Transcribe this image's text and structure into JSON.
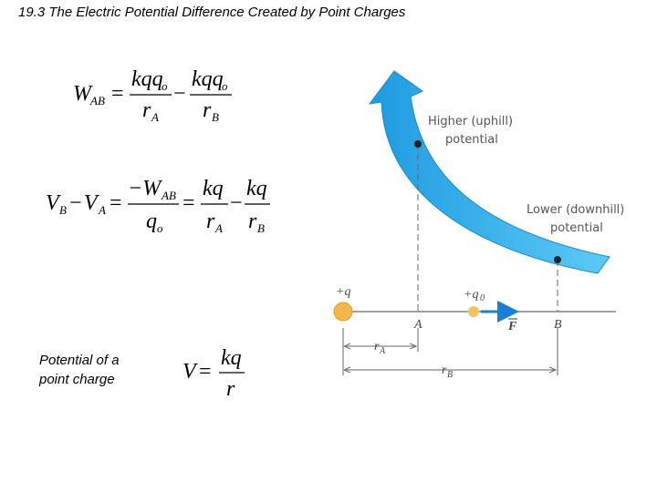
{
  "title": "19.3 The Electric Potential Difference Created by Point Charges",
  "equations": {
    "work": {
      "lhs": "W",
      "lhs_sub": "AB",
      "equals": "=",
      "num_1": "kqq",
      "num_1_sub": "o",
      "den_1": "r",
      "den_1_sub": "A",
      "minus": "−",
      "num_2": "kqq",
      "num_2_sub": "o",
      "den_2": "r",
      "den_2_sub": "B"
    },
    "potential_difference": {
      "v_b": "V",
      "v_b_sub": "B",
      "minus_1": "−",
      "v_a": "V",
      "v_a_sub": "A",
      "equals_1": "=",
      "num_1": "−W",
      "num_1_sub": "AB",
      "den_1": "q",
      "den_1_sub": "o",
      "equals_2": "=",
      "num_2": "kq",
      "den_2": "r",
      "den_2_sub": "A",
      "minus_2": "−",
      "num_3": "kq",
      "den_3": "r",
      "den_3_sub": "B"
    },
    "point_charge": {
      "caption_line_1": "Potential of a",
      "caption_line_2": "point charge",
      "lhs": "V",
      "equals": "=",
      "num": "kq",
      "den": "r"
    }
  },
  "diagram": {
    "higher_line_1": "Higher (uphill)",
    "higher_line_2": "potential",
    "lower_line_1": "Lower (downhill)",
    "lower_line_2": "potential",
    "source_charge": "+q",
    "test_charge": "+q",
    "test_charge_sub": "0",
    "point_a": "A",
    "point_b": "B",
    "force": "F",
    "r_a": "r",
    "r_a_sub": "A",
    "r_b": "r",
    "r_b_sub": "B"
  }
}
